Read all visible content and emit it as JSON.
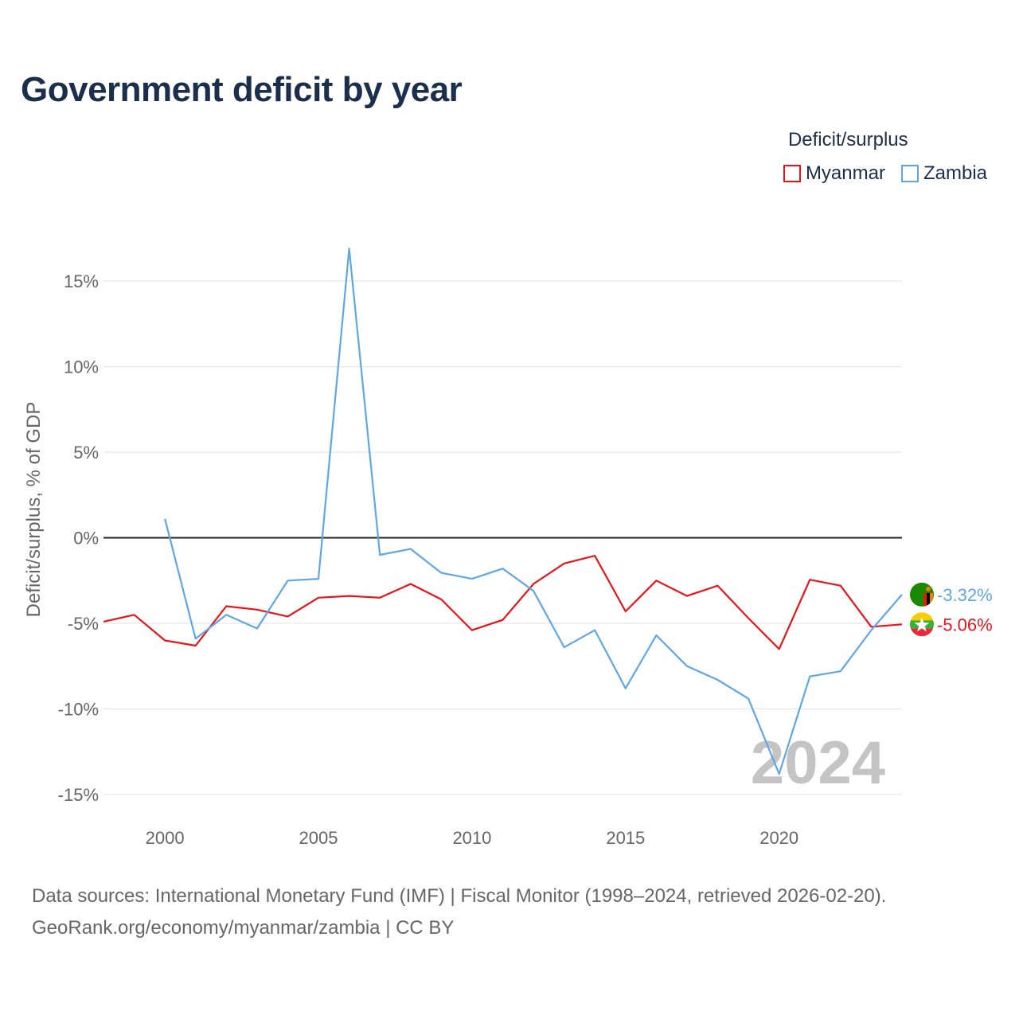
{
  "title": "Government deficit by year",
  "legend": {
    "title": "Deficit/surplus",
    "items": [
      {
        "label": "Myanmar",
        "color": "#e8141a"
      },
      {
        "label": "Zambia",
        "color": "#5fa7e3"
      }
    ]
  },
  "chart_data": {
    "type": "line",
    "title": "Government deficit by year",
    "xlabel": "",
    "ylabel": "Deficit/surplus, % of GDP",
    "xlim": [
      1998,
      2024
    ],
    "ylim": [
      -15,
      15
    ],
    "x_ticks": [
      2000,
      2005,
      2010,
      2015,
      2020
    ],
    "x_tick_labels": [
      "2000",
      "2005",
      "2010",
      "2015",
      "2020"
    ],
    "y_ticks": [
      15,
      10,
      5,
      0,
      -5,
      -10,
      -15
    ],
    "y_tick_labels": [
      "15%",
      "10%",
      "5%",
      "0%",
      "-5%",
      "-10%",
      "-15%"
    ],
    "watermark_year": "2024",
    "series": [
      {
        "name": "Myanmar",
        "color": "#e8141a",
        "end_label": "-5.06%",
        "flag_icon": "myanmar-flag-icon",
        "x": [
          1998,
          1999,
          2000,
          2001,
          2002,
          2003,
          2004,
          2005,
          2006,
          2007,
          2008,
          2009,
          2010,
          2011,
          2012,
          2013,
          2014,
          2015,
          2016,
          2017,
          2018,
          2019,
          2020,
          2021,
          2022,
          2023,
          2024
        ],
        "values": [
          -4.9,
          -4.5,
          -6.0,
          -6.3,
          -4.0,
          -4.2,
          -4.6,
          -3.5,
          -3.4,
          -3.5,
          -2.7,
          -3.6,
          -5.4,
          -4.8,
          -2.7,
          -1.5,
          -1.05,
          -4.3,
          -2.5,
          -3.4,
          -2.8,
          -4.7,
          -6.5,
          -2.45,
          -2.8,
          -5.2,
          -5.06
        ]
      },
      {
        "name": "Zambia",
        "color": "#5fa7e3",
        "end_label": "-3.32%",
        "flag_icon": "zambia-flag-icon",
        "x": [
          2000,
          2001,
          2002,
          2003,
          2004,
          2005,
          2006,
          2007,
          2008,
          2009,
          2010,
          2011,
          2012,
          2013,
          2014,
          2015,
          2016,
          2017,
          2018,
          2019,
          2020,
          2021,
          2022,
          2023,
          2024
        ],
        "values": [
          1.1,
          -5.9,
          -4.5,
          -5.3,
          -2.5,
          -2.4,
          16.9,
          -1.0,
          -0.65,
          -2.05,
          -2.4,
          -1.8,
          -3.1,
          -6.4,
          -5.4,
          -8.8,
          -5.7,
          -7.5,
          -8.3,
          -9.4,
          -13.8,
          -8.1,
          -7.8,
          -5.4,
          -3.32
        ]
      }
    ]
  },
  "footer": {
    "sources": "Data sources: International Monetary Fund (IMF) | Fiscal Monitor (1998–2024, retrieved 2026-02-20).",
    "credit": "GeoRank.org/economy/myanmar/zambia | CC BY"
  }
}
